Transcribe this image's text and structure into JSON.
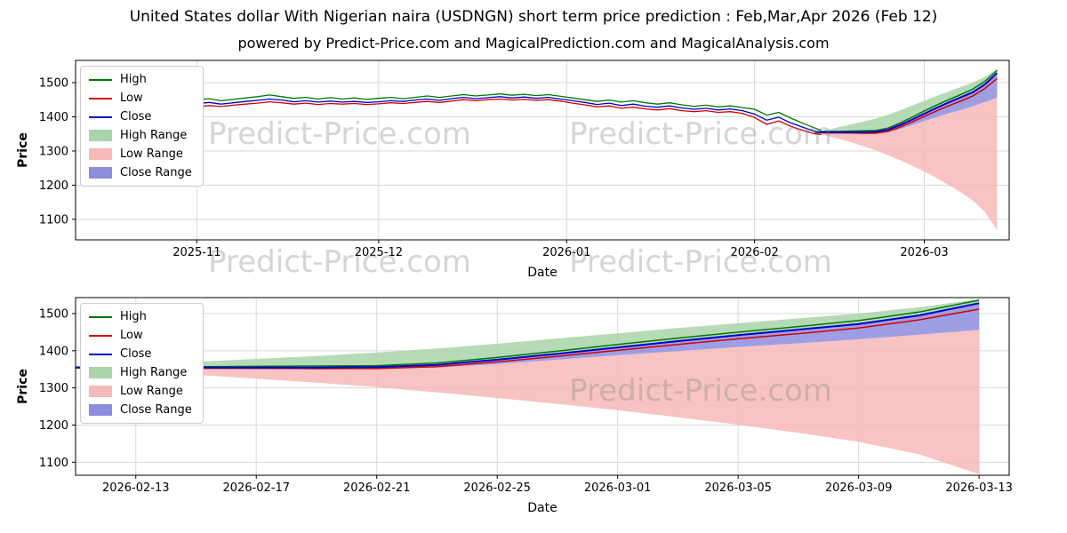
{
  "title": "United States dollar With Nigerian naira (USDNGN) short term price prediction : Feb,Mar,Apr 2026 (Feb 12)",
  "subtitle": "powered by Predict-Price.com and MagicalPrediction.com and MagicalAnalysis.com",
  "watermark": "Predict-Price.com",
  "colors": {
    "high_line": "#007800",
    "low_line": "#d40000",
    "close_line": "#0000cd",
    "high_range": "#a9d3a9",
    "low_range": "#f6b9b9",
    "close_range": "#8d8ddf",
    "grid": "#d9d9d9",
    "axis": "#000000",
    "watermark": "#808080"
  },
  "legend_items": [
    {
      "label": "High",
      "type": "line",
      "color_key": "high_line"
    },
    {
      "label": "Low",
      "type": "line",
      "color_key": "low_line"
    },
    {
      "label": "Close",
      "type": "line",
      "color_key": "close_line"
    },
    {
      "label": "High Range",
      "type": "patch",
      "color_key": "high_range"
    },
    {
      "label": "Low Range",
      "type": "patch",
      "color_key": "low_range"
    },
    {
      "label": "Close Range",
      "type": "patch",
      "color_key": "close_range"
    }
  ],
  "chart_data": {
    "type": "line",
    "charts": [
      {
        "id": "history-chart",
        "xlabel": "Date",
        "ylabel": "Price",
        "x_domain": [
          "2025-10-12",
          "2026-03-15"
        ],
        "y_domain": [
          1040,
          1565
        ],
        "yticks": [
          1100,
          1200,
          1300,
          1400,
          1500
        ],
        "xticks": [
          "2025-11-01",
          "2025-12-01",
          "2026-01-01",
          "2026-02-01",
          "2026-03-01"
        ],
        "xtick_labels": [
          "2025-11",
          "2025-12",
          "2026-01",
          "2026-02",
          "2026-03"
        ],
        "show_history": true
      },
      {
        "id": "forecast-chart",
        "xlabel": "Date",
        "ylabel": "Price",
        "x_domain": [
          "2026-02-11",
          "2026-03-14"
        ],
        "y_domain": [
          1065,
          1543
        ],
        "yticks": [
          1100,
          1200,
          1300,
          1400,
          1500
        ],
        "xticks": [
          "2026-02-13",
          "2026-02-17",
          "2026-02-21",
          "2026-02-25",
          "2026-03-01",
          "2026-03-05",
          "2026-03-09",
          "2026-03-13"
        ],
        "xtick_labels": [
          "2026-02-13",
          "2026-02-17",
          "2026-02-21",
          "2026-02-25",
          "2026-03-01",
          "2026-03-05",
          "2026-03-09",
          "2026-03-13"
        ],
        "show_history": false
      }
    ],
    "history": {
      "dates": [
        "2025-10-14",
        "2025-10-16",
        "2025-10-18",
        "2025-10-20",
        "2025-10-22",
        "2025-10-24",
        "2025-10-26",
        "2025-10-28",
        "2025-10-30",
        "2025-11-01",
        "2025-11-03",
        "2025-11-05",
        "2025-11-07",
        "2025-11-09",
        "2025-11-11",
        "2025-11-13",
        "2025-11-15",
        "2025-11-17",
        "2025-11-19",
        "2025-11-21",
        "2025-11-23",
        "2025-11-25",
        "2025-11-27",
        "2025-11-29",
        "2025-12-01",
        "2025-12-03",
        "2025-12-05",
        "2025-12-07",
        "2025-12-09",
        "2025-12-11",
        "2025-12-13",
        "2025-12-15",
        "2025-12-17",
        "2025-12-19",
        "2025-12-21",
        "2025-12-23",
        "2025-12-25",
        "2025-12-27",
        "2025-12-29",
        "2025-12-31",
        "2026-01-02",
        "2026-01-04",
        "2026-01-06",
        "2026-01-08",
        "2026-01-10",
        "2026-01-12",
        "2026-01-14",
        "2026-01-16",
        "2026-01-18",
        "2026-01-20",
        "2026-01-22",
        "2026-01-24",
        "2026-01-26",
        "2026-01-28",
        "2026-01-30",
        "2026-02-01",
        "2026-02-03",
        "2026-02-05",
        "2026-02-07",
        "2026-02-09",
        "2026-02-11",
        "2026-02-12"
      ],
      "high": [
        1462,
        1460,
        1456,
        1452,
        1456,
        1451,
        1455,
        1448,
        1452,
        1449,
        1453,
        1447,
        1451,
        1455,
        1459,
        1464,
        1459,
        1454,
        1457,
        1452,
        1456,
        1452,
        1455,
        1451,
        1454,
        1457,
        1453,
        1457,
        1461,
        1457,
        1461,
        1465,
        1461,
        1464,
        1467,
        1463,
        1466,
        1462,
        1465,
        1460,
        1455,
        1450,
        1445,
        1449,
        1443,
        1447,
        1441,
        1437,
        1441,
        1435,
        1431,
        1434,
        1429,
        1432,
        1427,
        1422,
        1405,
        1413,
        1396,
        1381,
        1367,
        1360
      ],
      "low": [
        1455,
        1450,
        1435,
        1421,
        1430,
        1428,
        1432,
        1428,
        1430,
        1429,
        1433,
        1430,
        1434,
        1437,
        1440,
        1444,
        1441,
        1437,
        1440,
        1436,
        1439,
        1437,
        1439,
        1436,
        1438,
        1441,
        1439,
        1442,
        1445,
        1442,
        1446,
        1450,
        1447,
        1450,
        1452,
        1449,
        1451,
        1448,
        1450,
        1446,
        1440,
        1435,
        1429,
        1432,
        1425,
        1428,
        1423,
        1420,
        1424,
        1418,
        1415,
        1418,
        1413,
        1415,
        1410,
        1398,
        1378,
        1388,
        1372,
        1360,
        1350,
        1348
      ],
      "close": [
        1458,
        1455,
        1446,
        1435,
        1443,
        1438,
        1442,
        1436,
        1440,
        1438,
        1442,
        1437,
        1441,
        1445,
        1448,
        1452,
        1449,
        1444,
        1447,
        1443,
        1446,
        1443,
        1445,
        1442,
        1444,
        1447,
        1445,
        1449,
        1452,
        1448,
        1453,
        1457,
        1453,
        1456,
        1459,
        1455,
        1458,
        1454,
        1457,
        1452,
        1447,
        1442,
        1436,
        1440,
        1433,
        1437,
        1431,
        1428,
        1432,
        1426,
        1422,
        1425,
        1420,
        1423,
        1418,
        1408,
        1390,
        1399,
        1382,
        1369,
        1357,
        1355
      ]
    },
    "forecast": {
      "dates": [
        "2026-02-11",
        "2026-02-13",
        "2026-02-15",
        "2026-02-17",
        "2026-02-19",
        "2026-02-21",
        "2026-02-23",
        "2026-02-25",
        "2026-02-27",
        "2026-03-01",
        "2026-03-03",
        "2026-03-05",
        "2026-03-07",
        "2026-03-09",
        "2026-03-11",
        "2026-03-13"
      ],
      "close": [
        1355,
        1355,
        1355,
        1355,
        1355,
        1356,
        1362,
        1376,
        1392,
        1409,
        1426,
        1442,
        1457,
        1472,
        1495,
        1528
      ],
      "high": [
        1356,
        1357,
        1357,
        1358,
        1359,
        1360,
        1367,
        1382,
        1399,
        1417,
        1434,
        1450,
        1465,
        1481,
        1504,
        1536
      ],
      "low": [
        1354,
        1353,
        1353,
        1353,
        1352,
        1352,
        1357,
        1370,
        1385,
        1401,
        1417,
        1432,
        1446,
        1461,
        1483,
        1512
      ],
      "high_upper": [
        1356,
        1362,
        1370,
        1378,
        1386,
        1395,
        1406,
        1419,
        1433,
        1447,
        1461,
        1474,
        1487,
        1500,
        1517,
        1539
      ],
      "close_lower": [
        1354,
        1352,
        1351,
        1350,
        1350,
        1351,
        1355,
        1364,
        1376,
        1388,
        1399,
        1410,
        1420,
        1431,
        1443,
        1456
      ],
      "low_lower": [
        1352,
        1344,
        1335,
        1325,
        1314,
        1302,
        1288,
        1273,
        1257,
        1240,
        1221,
        1201,
        1179,
        1155,
        1122,
        1068
      ]
    }
  }
}
